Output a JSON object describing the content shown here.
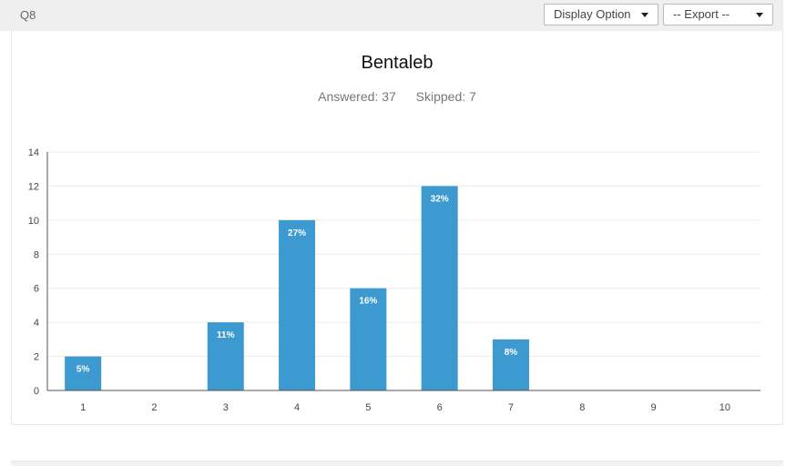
{
  "header": {
    "question_label": "Q8",
    "display_option_label": "Display Option",
    "export_label": "-- Export --"
  },
  "card": {
    "title": "Bentaleb",
    "answered": "Answered: 37",
    "skipped": "Skipped: 7"
  },
  "colors": {
    "bar": "#3c9ad1",
    "grid": "#ececec",
    "axis": "#555555"
  },
  "chart_data": {
    "type": "bar",
    "categories": [
      "1",
      "2",
      "3",
      "4",
      "5",
      "6",
      "7",
      "8",
      "9",
      "10"
    ],
    "values": [
      2,
      0,
      4,
      10,
      6,
      12,
      3,
      0,
      0,
      0
    ],
    "data_labels": [
      "5%",
      "",
      "11%",
      "27%",
      "16%",
      "32%",
      "8%",
      "",
      "",
      ""
    ],
    "y_ticks": [
      0,
      2,
      4,
      6,
      8,
      10,
      12,
      14
    ],
    "ylim": [
      0,
      14
    ],
    "grid": true,
    "legend": "none"
  }
}
